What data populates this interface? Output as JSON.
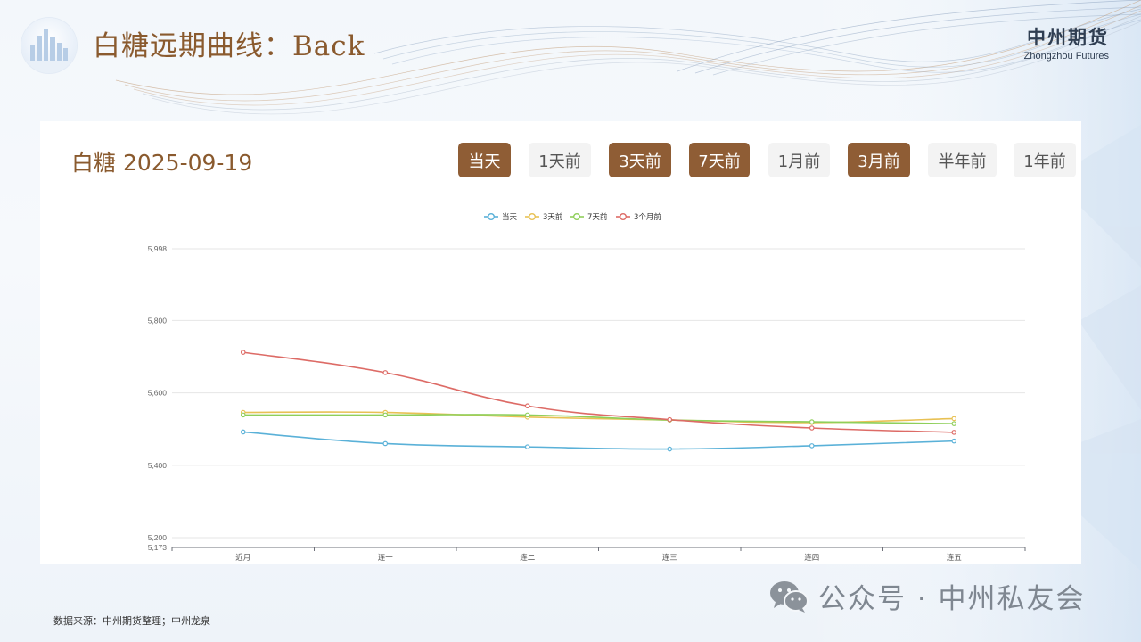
{
  "header": {
    "title": "白糖远期曲线：Back",
    "brand_cn": "中州期货",
    "brand_en": "Zhongzhou Futures"
  },
  "chart_header": {
    "title": "白糖 2025-09-19"
  },
  "buttons": [
    {
      "label": "当天",
      "active": true
    },
    {
      "label": "1天前",
      "active": false
    },
    {
      "label": "3天前",
      "active": true
    },
    {
      "label": "7天前",
      "active": true
    },
    {
      "label": "1月前",
      "active": false
    },
    {
      "label": "3月前",
      "active": true
    },
    {
      "label": "半年前",
      "active": false
    },
    {
      "label": "1年前",
      "active": false
    }
  ],
  "footer": {
    "source": "数据来源：中州期货整理；中州龙泉",
    "watermark": "公众号 · 中州私友会"
  },
  "colors": {
    "accent": "#8f5d35",
    "title": "#8a5a2e",
    "series": [
      "#5ab1d8",
      "#e8c154",
      "#8fcf5a",
      "#dd6b66"
    ]
  },
  "chart_data": {
    "type": "line",
    "categories": [
      "近月",
      "连一",
      "连二",
      "连三",
      "连四",
      "连五"
    ],
    "ylim": [
      5173,
      5998
    ],
    "yticks": [
      5173,
      5200,
      5400,
      5600,
      5800,
      5998
    ],
    "ytick_labels": [
      "5,173",
      "5,200",
      "5,400",
      "5,600",
      "5,800",
      "5,998"
    ],
    "grid": true,
    "legend_position": "top-center",
    "smooth": true,
    "series": [
      {
        "name": "当天",
        "values": [
          5492,
          5460,
          5451,
          5445,
          5454,
          5467
        ]
      },
      {
        "name": "3天前",
        "values": [
          5546,
          5546,
          5533,
          5525,
          5518,
          5529
        ]
      },
      {
        "name": "7天前",
        "values": [
          5539,
          5539,
          5539,
          5525,
          5520,
          5515
        ]
      },
      {
        "name": "3个月前",
        "values": [
          5712,
          5656,
          5564,
          5526,
          5503,
          5491
        ]
      }
    ]
  }
}
